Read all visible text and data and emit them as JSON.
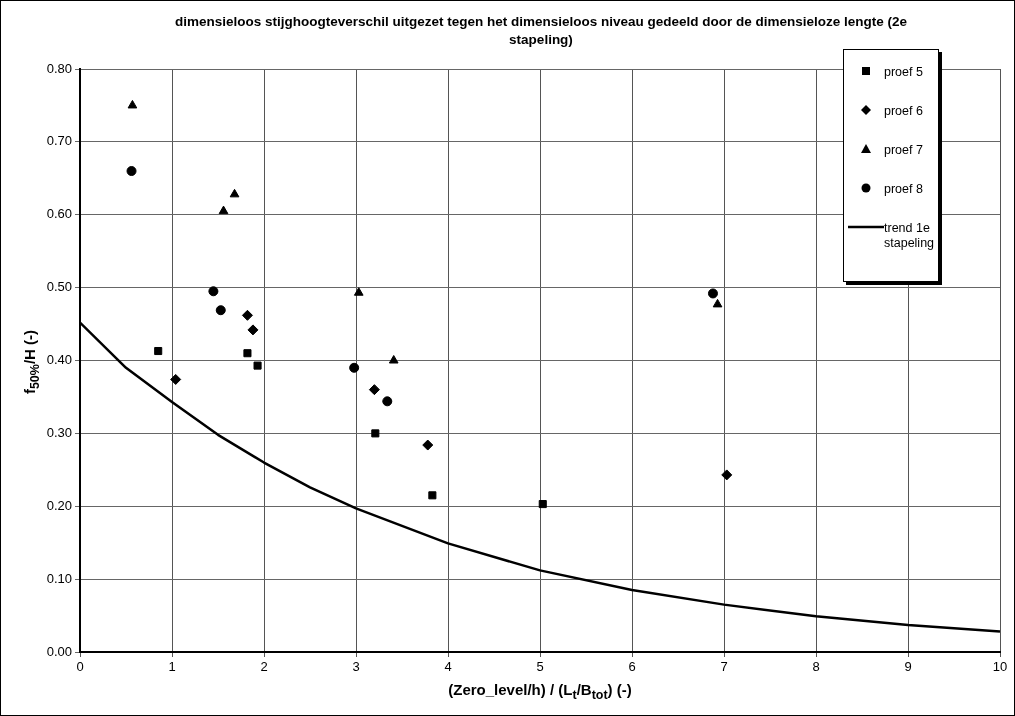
{
  "chart_data": {
    "type": "scatter",
    "title": "dimensieloos stijghoogteverschil uitgezet tegen het dimensieloos niveau gedeeld door de dimensieloze lengte (2e stapeling)",
    "xlabel": "(Zero_level/h) / (L$_{t}$/B$_{tot}$) (-)",
    "ylabel": "f$_{50%}$/H (-)",
    "xlim": [
      0,
      10
    ],
    "xticks": [
      0,
      1,
      2,
      3,
      4,
      5,
      6,
      7,
      8,
      9,
      10
    ],
    "ylim": [
      0,
      0.8
    ],
    "yticks": [
      {
        "value": 0,
        "label": "0.00"
      },
      {
        "value": 0.1,
        "label": "0.10"
      },
      {
        "value": 0.2,
        "label": "0.20"
      },
      {
        "value": 0.3,
        "label": "0.30"
      },
      {
        "value": 0.4,
        "label": "0.40"
      },
      {
        "value": 0.5,
        "label": "0.50"
      },
      {
        "value": 0.6,
        "label": "0.60"
      },
      {
        "value": 0.7,
        "label": "0.70"
      },
      {
        "value": 0.8,
        "label": "0.80"
      }
    ],
    "grid": true,
    "legend": "top right",
    "series": [
      {
        "name": "proef 5",
        "color": "#000000",
        "marker": "square",
        "x": [
          0.85,
          1.82,
          1.93,
          3.21,
          3.83,
          5.03
        ],
        "values": [
          0.413,
          0.41,
          0.393,
          0.3,
          0.215,
          0.203
        ]
      },
      {
        "name": "proef 6",
        "color": "#000000",
        "marker": "diamond",
        "x": [
          1.04,
          1.82,
          1.88,
          3.2,
          3.78,
          7.03
        ],
        "values": [
          0.374,
          0.462,
          0.442,
          0.36,
          0.284,
          0.243
        ]
      },
      {
        "name": "proef 7",
        "color": "#000000",
        "marker": "triangle",
        "x": [
          0.57,
          1.56,
          1.68,
          3.03,
          3.41,
          6.93
        ],
        "values": [
          0.75,
          0.605,
          0.628,
          0.493,
          0.4,
          0.477
        ]
      },
      {
        "name": "proef 8",
        "color": "#000000",
        "marker": "circle",
        "x": [
          0.56,
          1.45,
          1.53,
          2.98,
          3.34,
          6.88
        ],
        "values": [
          0.66,
          0.495,
          0.469,
          0.39,
          0.344,
          0.492
        ]
      },
      {
        "name": "trend 1e stapeling",
        "type": "line",
        "color": "#000000",
        "marker": "none",
        "line_style": "solid",
        "x": [
          0,
          0.5,
          1,
          1.5,
          2,
          2.5,
          3,
          4,
          5,
          6,
          7,
          8,
          9,
          10
        ],
        "values": [
          0.452,
          0.39,
          0.343,
          0.298,
          0.26,
          0.226,
          0.197,
          0.149,
          0.112,
          0.085,
          0.065,
          0.049,
          0.037,
          0.028
        ]
      }
    ]
  }
}
